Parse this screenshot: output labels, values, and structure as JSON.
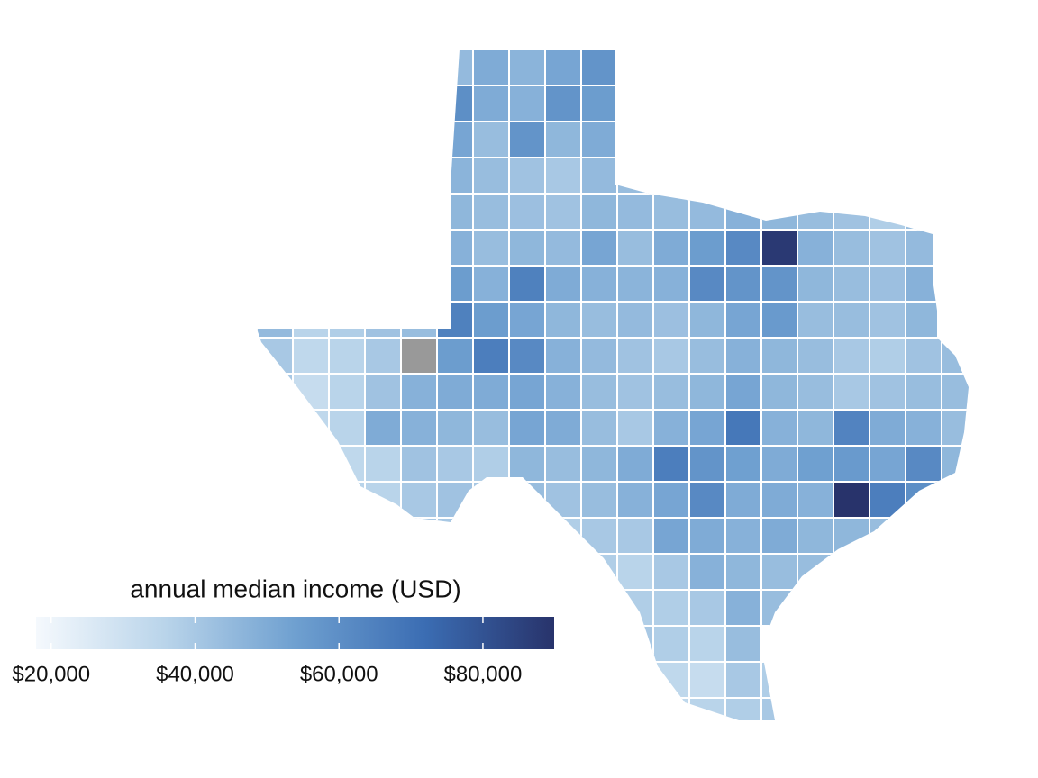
{
  "chart_data": {
    "type": "choropleth",
    "legend_title": "annual median income (USD)",
    "lim": [
      17900,
      89900
    ],
    "ticks": [
      {
        "value": 20000,
        "label": "$20,000"
      },
      {
        "value": 40000,
        "label": "$40,000"
      },
      {
        "value": 60000,
        "label": "$60,000"
      },
      {
        "value": 80000,
        "label": "$80,000"
      }
    ],
    "colors": [
      "#f5f9fd",
      "#b9d4ea",
      "#6fa0d0",
      "#3b6db3",
      "#28336b"
    ],
    "na_color": "#999999",
    "values": [
      [
        null,
        null,
        null,
        null,
        null,
        45000,
        50000,
        47000,
        52000,
        58000,
        null,
        null,
        null,
        null,
        null,
        null,
        null,
        null,
        null,
        null
      ],
      [
        null,
        null,
        null,
        null,
        null,
        60000,
        50000,
        48000,
        58000,
        55000,
        null,
        null,
        null,
        null,
        null,
        null,
        null,
        null,
        null,
        null
      ],
      [
        null,
        null,
        null,
        null,
        null,
        52000,
        44000,
        58000,
        46000,
        50000,
        null,
        null,
        null,
        null,
        null,
        null,
        null,
        null,
        null,
        null
      ],
      [
        null,
        null,
        null,
        null,
        null,
        47000,
        44000,
        42000,
        40000,
        45000,
        44000,
        42000,
        null,
        null,
        null,
        null,
        null,
        null,
        null,
        null
      ],
      [
        null,
        null,
        null,
        null,
        null,
        46000,
        44000,
        43000,
        42000,
        46000,
        45000,
        44000,
        45000,
        48000,
        46000,
        44000,
        42000,
        38000,
        44000,
        null
      ],
      [
        null,
        null,
        null,
        null,
        null,
        48000,
        44000,
        46000,
        45000,
        52000,
        44000,
        50000,
        55000,
        62000,
        88000,
        48000,
        44000,
        42000,
        45000,
        null
      ],
      [
        null,
        null,
        null,
        null,
        null,
        55000,
        48000,
        65000,
        50000,
        48000,
        47000,
        48000,
        62000,
        58000,
        58000,
        46000,
        44000,
        43000,
        48000,
        null
      ],
      [
        45000,
        36000,
        38000,
        42000,
        44000,
        65000,
        55000,
        52000,
        46000,
        44000,
        45000,
        43000,
        46000,
        52000,
        56000,
        44000,
        44000,
        42000,
        46000,
        45000
      ],
      [
        40000,
        34000,
        36000,
        40000,
        null,
        55000,
        66000,
        62000,
        48000,
        45000,
        42000,
        40000,
        44000,
        48000,
        46000,
        44000,
        40000,
        38000,
        42000,
        44000
      ],
      [
        40000,
        32000,
        36000,
        42000,
        48000,
        50000,
        50000,
        52000,
        48000,
        44000,
        42000,
        44000,
        46000,
        52000,
        46000,
        44000,
        40000,
        42000,
        44000,
        44000
      ],
      [
        null,
        34000,
        36000,
        50000,
        48000,
        46000,
        44000,
        52000,
        50000,
        44000,
        40000,
        48000,
        52000,
        68000,
        48000,
        46000,
        64000,
        50000,
        48000,
        44000
      ],
      [
        null,
        null,
        34000,
        36000,
        42000,
        40000,
        38000,
        46000,
        44000,
        46000,
        50000,
        66000,
        58000,
        54000,
        50000,
        54000,
        56000,
        52000,
        62000,
        46000
      ],
      [
        null,
        null,
        36000,
        36000,
        40000,
        42000,
        40000,
        44000,
        42000,
        44000,
        48000,
        52000,
        62000,
        50000,
        50000,
        48000,
        90000,
        66000,
        60000,
        46000
      ],
      [
        null,
        null,
        null,
        null,
        40000,
        40000,
        null,
        null,
        38000,
        40000,
        40000,
        52000,
        50000,
        48000,
        50000,
        46000,
        46000,
        44000,
        null,
        null
      ],
      [
        null,
        null,
        null,
        null,
        null,
        null,
        null,
        null,
        null,
        38000,
        36000,
        40000,
        48000,
        46000,
        44000,
        44000,
        44000,
        null,
        null,
        null
      ],
      [
        null,
        null,
        null,
        null,
        null,
        null,
        null,
        null,
        null,
        null,
        38000,
        38000,
        40000,
        48000,
        44000,
        null,
        null,
        null,
        null,
        null
      ],
      [
        null,
        null,
        null,
        null,
        null,
        null,
        null,
        null,
        null,
        null,
        40000,
        38000,
        36000,
        44000,
        null,
        null,
        null,
        null,
        null,
        null
      ],
      [
        null,
        null,
        null,
        null,
        null,
        null,
        null,
        null,
        null,
        null,
        null,
        34000,
        32000,
        40000,
        38000,
        null,
        null,
        null,
        null,
        null
      ],
      [
        null,
        null,
        null,
        null,
        null,
        null,
        null,
        null,
        null,
        null,
        null,
        34000,
        36000,
        38000,
        40000,
        null,
        null,
        null,
        null,
        null
      ]
    ]
  }
}
